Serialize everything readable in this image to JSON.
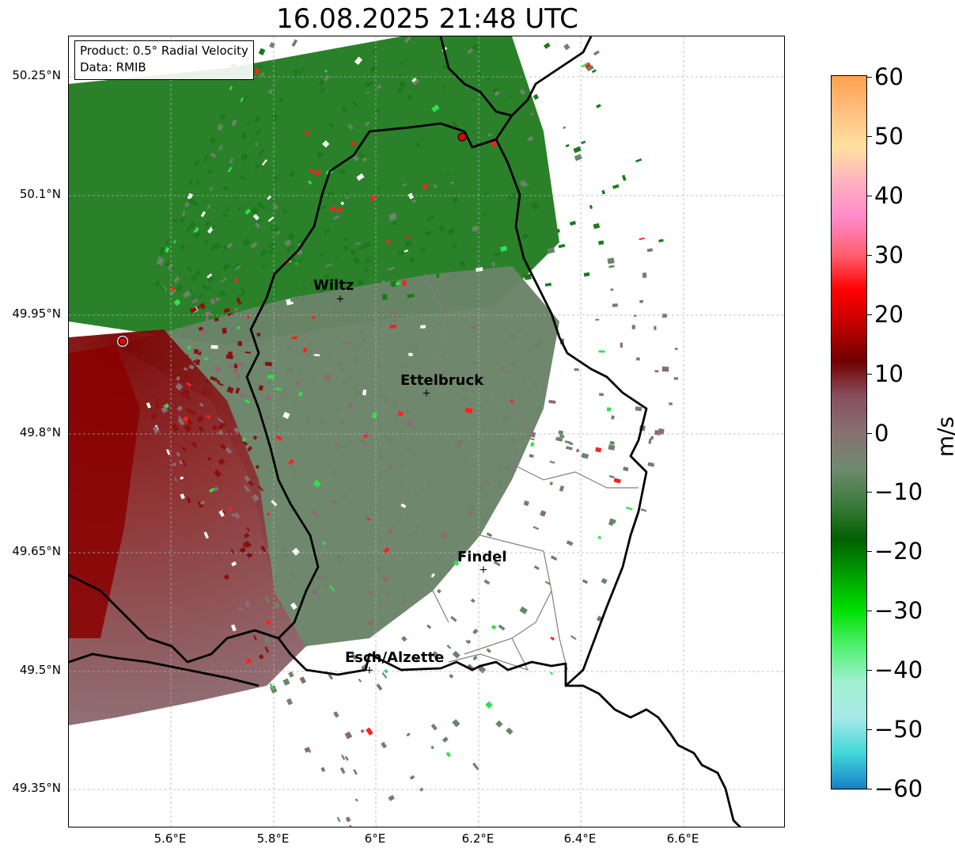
{
  "title": "16.08.2025 21:48 UTC",
  "info_box": {
    "product": "Product: 0.5° Radial Velocity",
    "source": "Data: RMIB"
  },
  "axes": {
    "lat_ticks": [
      "50.25°N",
      "50.1°N",
      "49.95°N",
      "49.8°N",
      "49.65°N",
      "49.5°N",
      "49.35°N"
    ],
    "lon_ticks": [
      "5.6°E",
      "5.8°E",
      "6°E",
      "6.2°E",
      "6.4°E",
      "6.6°E"
    ]
  },
  "cities": [
    {
      "name": "Wiltz"
    },
    {
      "name": "Ettelbruck"
    },
    {
      "name": "Findel"
    },
    {
      "name": "Esch/Alzette"
    }
  ],
  "colorbar": {
    "label": "m/s",
    "ticks": [
      "60",
      "50",
      "40",
      "30",
      "20",
      "10",
      "0",
      "−10",
      "−20",
      "−30",
      "−40",
      "−50",
      "−60"
    ],
    "colors": [
      "#ffa050",
      "#ffc080",
      "#ffe0a0",
      "#ffb0c0",
      "#ff88c8",
      "#ff6070",
      "#ff0000",
      "#c00000",
      "#700000",
      "#885060",
      "#887070",
      "#708a70",
      "#3e7a3e",
      "#006000",
      "#00a000",
      "#00e000",
      "#50f070",
      "#a0f0d0",
      "#a8e8e8",
      "#40d8d8",
      "#1880c8"
    ]
  },
  "radar_marker_color": "#e00000",
  "map_colors": {
    "inbound_green": "#1a7a1a",
    "neutral_gray_green": "#6a8468",
    "outbound_red": "#8a1010",
    "outbound_mauve": "#8a6c72"
  }
}
